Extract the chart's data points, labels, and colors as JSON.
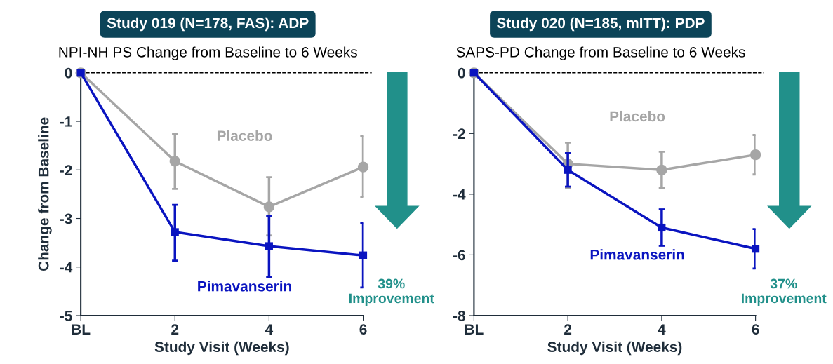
{
  "chart_data": [
    {
      "type": "line",
      "title": "Study 019 (N=178, FAS): ADP",
      "subtitle": "NPI-NH PS Change from Baseline to 6 Weeks",
      "xlabel": "Study Visit (Weeks)",
      "ylabel": "Change from Baseline",
      "x": [
        0,
        2,
        4,
        6
      ],
      "xlim": [
        0,
        6
      ],
      "xticks": [
        {
          "value": 0,
          "label": "BL"
        },
        2,
        4,
        6
      ],
      "ylim": [
        -5,
        0
      ],
      "yticks": [
        -5,
        -4,
        -3,
        -2,
        -1,
        0
      ],
      "series": [
        {
          "name": "Placebo",
          "color": "#a6a6a6",
          "marker": "circle",
          "values": [
            0,
            -1.82,
            -2.76,
            -1.94
          ],
          "errors": [
            null,
            [
              -2.39,
              -1.26
            ],
            [
              -3.35,
              -2.15
            ],
            [
              -2.56,
              -1.3
            ]
          ]
        },
        {
          "name": "Pimavanserin",
          "color": "#0a14c0",
          "marker": "square",
          "values": [
            0,
            -3.28,
            -3.57,
            -3.76
          ],
          "errors": [
            null,
            [
              -3.87,
              -2.72
            ],
            [
              -4.2,
              -2.95
            ],
            [
              -4.42,
              -3.1
            ]
          ]
        }
      ],
      "ref_lines": [
        {
          "axis": "y",
          "value": 0,
          "color": "#000000",
          "line_style": "dashed"
        }
      ],
      "annotations": [
        "39%\nImprovement"
      ],
      "legend": false,
      "grid": false
    },
    {
      "type": "line",
      "title": "Study 020 (N=185, mITT): PDP",
      "subtitle": "SAPS-PD Change from Baseline to 6 Weeks",
      "xlabel": "Study Visit (Weeks)",
      "x": [
        0,
        2,
        4,
        6
      ],
      "xlim": [
        0,
        6
      ],
      "xticks": [
        {
          "value": 0,
          "label": "BL"
        },
        2,
        4,
        6
      ],
      "ylim": [
        -8,
        0
      ],
      "yticks": [
        -8,
        -6,
        -4,
        -2,
        0
      ],
      "series": [
        {
          "name": "Placebo",
          "color": "#a6a6a6",
          "marker": "circle",
          "values": [
            0,
            -3.0,
            -3.2,
            -2.7
          ],
          "errors": [
            null,
            [
              -3.8,
              -2.3
            ],
            [
              -3.8,
              -2.6
            ],
            [
              -3.35,
              -2.05
            ]
          ]
        },
        {
          "name": "Pimavanserin",
          "color": "#0a14c0",
          "marker": "square",
          "values": [
            0,
            -3.2,
            -5.1,
            -5.8
          ],
          "errors": [
            null,
            [
              -3.75,
              -2.65
            ],
            [
              -5.7,
              -4.5
            ],
            [
              -6.45,
              -5.15
            ]
          ]
        }
      ],
      "ref_lines": [
        {
          "axis": "y",
          "value": 0,
          "color": "#000000",
          "line_style": "dashed"
        }
      ],
      "annotations": [
        "37%\nImprovement"
      ],
      "legend": false,
      "grid": false
    }
  ]
}
